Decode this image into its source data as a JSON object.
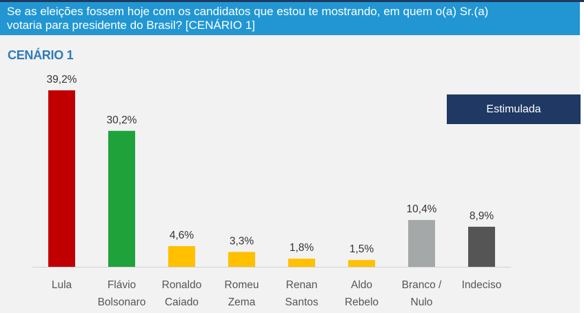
{
  "header": {
    "question_line1": "Se as eleições fossem hoje com os candidatos que estou te mostrando, em quem o(a) Sr.(a)",
    "question_line2": "votaria para presidente do Brasil? [CENÁRIO 1]"
  },
  "subtitle": "CENÁRIO 1",
  "badge": "Estimulada",
  "colors": {
    "header_bg": "#2196d3",
    "subtitle": "#2e7bb9",
    "badge_bg": "#1f3864"
  },
  "chart_data": {
    "type": "bar",
    "title": "",
    "xlabel": "",
    "ylabel": "",
    "ylim": [
      0,
      39.2
    ],
    "grid": false,
    "categories": [
      [
        "Lula"
      ],
      [
        "Flávio",
        "Bolsonaro"
      ],
      [
        "Ronaldo",
        "Caiado"
      ],
      [
        "Romeu",
        "Zema"
      ],
      [
        "Renan",
        "Santos"
      ],
      [
        "Aldo",
        "Rebelo"
      ],
      [
        "Branco /",
        "Nulo"
      ],
      [
        "Indeciso"
      ]
    ],
    "values": [
      39.2,
      30.2,
      4.6,
      3.3,
      1.8,
      1.5,
      10.4,
      8.9
    ],
    "value_labels": [
      "39,2%",
      "30,2%",
      "4,6%",
      "3,3%",
      "1,8%",
      "1,5%",
      "10,4%",
      "8,9%"
    ],
    "bar_colors": [
      "#c00000",
      "#1fa23a",
      "#ffc000",
      "#ffc000",
      "#ffc000",
      "#ffc000",
      "#a5a8a8",
      "#555555"
    ]
  }
}
